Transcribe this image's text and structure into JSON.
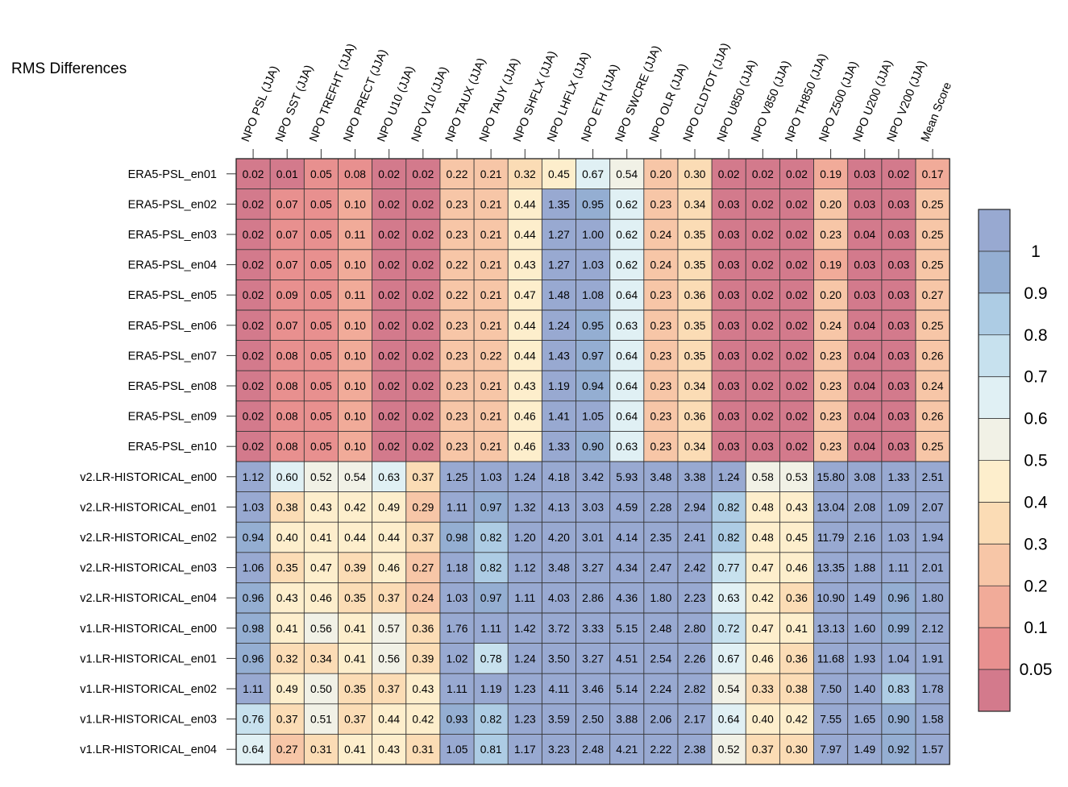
{
  "chart_data": {
    "type": "heatmap",
    "title": "RMS Differences",
    "columns": [
      "NPO PSL (JJA)",
      "NPO SST (JJA)",
      "NPO TREFHT (JJA)",
      "NPO PRECT (JJA)",
      "NPO U10 (JJA)",
      "NPO V10 (JJA)",
      "NPO TAUX (JJA)",
      "NPO TAUY (JJA)",
      "NPO SHFLX (JJA)",
      "NPO LHFLX (JJA)",
      "NPO ETH (JJA)",
      "NPO SWCRE (JJA)",
      "NPO OLR (JJA)",
      "NPO CLDTOT (JJA)",
      "NPO U850 (JJA)",
      "NPO V850 (JJA)",
      "NPO TH850 (JJA)",
      "NPO Z500 (JJA)",
      "NPO U200 (JJA)",
      "NPO V200 (JJA)",
      "Mean Score"
    ],
    "rows": [
      "ERA5-PSL_en01",
      "ERA5-PSL_en02",
      "ERA5-PSL_en03",
      "ERA5-PSL_en04",
      "ERA5-PSL_en05",
      "ERA5-PSL_en06",
      "ERA5-PSL_en07",
      "ERA5-PSL_en08",
      "ERA5-PSL_en09",
      "ERA5-PSL_en10",
      "v2.LR-HISTORICAL_en00",
      "v2.LR-HISTORICAL_en01",
      "v2.LR-HISTORICAL_en02",
      "v2.LR-HISTORICAL_en03",
      "v2.LR-HISTORICAL_en04",
      "v1.LR-HISTORICAL_en00",
      "v1.LR-HISTORICAL_en01",
      "v1.LR-HISTORICAL_en02",
      "v1.LR-HISTORICAL_en03",
      "v1.LR-HISTORICAL_en04"
    ],
    "values": [
      [
        "0.02",
        "0.01",
        "0.05",
        "0.08",
        "0.02",
        "0.02",
        "0.22",
        "0.21",
        "0.32",
        "0.45",
        "0.67",
        "0.54",
        "0.20",
        "0.30",
        "0.02",
        "0.02",
        "0.02",
        "0.19",
        "0.03",
        "0.02",
        "0.17"
      ],
      [
        "0.02",
        "0.07",
        "0.05",
        "0.10",
        "0.02",
        "0.02",
        "0.23",
        "0.21",
        "0.44",
        "1.35",
        "0.95",
        "0.62",
        "0.23",
        "0.34",
        "0.03",
        "0.02",
        "0.02",
        "0.20",
        "0.03",
        "0.03",
        "0.25"
      ],
      [
        "0.02",
        "0.07",
        "0.05",
        "0.11",
        "0.02",
        "0.02",
        "0.23",
        "0.21",
        "0.44",
        "1.27",
        "1.00",
        "0.62",
        "0.24",
        "0.35",
        "0.03",
        "0.02",
        "0.02",
        "0.23",
        "0.04",
        "0.03",
        "0.25"
      ],
      [
        "0.02",
        "0.07",
        "0.05",
        "0.10",
        "0.02",
        "0.02",
        "0.22",
        "0.21",
        "0.43",
        "1.27",
        "1.03",
        "0.62",
        "0.24",
        "0.35",
        "0.03",
        "0.02",
        "0.02",
        "0.19",
        "0.03",
        "0.03",
        "0.25"
      ],
      [
        "0.02",
        "0.09",
        "0.05",
        "0.11",
        "0.02",
        "0.02",
        "0.22",
        "0.21",
        "0.47",
        "1.48",
        "1.08",
        "0.64",
        "0.23",
        "0.36",
        "0.03",
        "0.02",
        "0.02",
        "0.20",
        "0.03",
        "0.03",
        "0.27"
      ],
      [
        "0.02",
        "0.07",
        "0.05",
        "0.10",
        "0.02",
        "0.02",
        "0.23",
        "0.21",
        "0.44",
        "1.24",
        "0.95",
        "0.63",
        "0.23",
        "0.35",
        "0.03",
        "0.02",
        "0.02",
        "0.24",
        "0.04",
        "0.03",
        "0.25"
      ],
      [
        "0.02",
        "0.08",
        "0.05",
        "0.10",
        "0.02",
        "0.02",
        "0.23",
        "0.22",
        "0.44",
        "1.43",
        "0.97",
        "0.64",
        "0.23",
        "0.35",
        "0.03",
        "0.02",
        "0.02",
        "0.23",
        "0.04",
        "0.03",
        "0.26"
      ],
      [
        "0.02",
        "0.08",
        "0.05",
        "0.10",
        "0.02",
        "0.02",
        "0.23",
        "0.21",
        "0.43",
        "1.19",
        "0.94",
        "0.64",
        "0.23",
        "0.34",
        "0.03",
        "0.02",
        "0.02",
        "0.23",
        "0.04",
        "0.03",
        "0.24"
      ],
      [
        "0.02",
        "0.08",
        "0.05",
        "0.10",
        "0.02",
        "0.02",
        "0.23",
        "0.21",
        "0.46",
        "1.41",
        "1.05",
        "0.64",
        "0.23",
        "0.36",
        "0.03",
        "0.02",
        "0.02",
        "0.23",
        "0.04",
        "0.03",
        "0.26"
      ],
      [
        "0.02",
        "0.08",
        "0.05",
        "0.10",
        "0.02",
        "0.02",
        "0.23",
        "0.21",
        "0.46",
        "1.33",
        "0.90",
        "0.63",
        "0.23",
        "0.34",
        "0.03",
        "0.03",
        "0.02",
        "0.23",
        "0.04",
        "0.03",
        "0.25"
      ],
      [
        "1.12",
        "0.60",
        "0.52",
        "0.54",
        "0.63",
        "0.37",
        "1.25",
        "1.03",
        "1.24",
        "4.18",
        "3.42",
        "5.93",
        "3.48",
        "3.38",
        "1.24",
        "0.58",
        "0.53",
        "15.80",
        "3.08",
        "1.33",
        "2.51"
      ],
      [
        "1.03",
        "0.38",
        "0.43",
        "0.42",
        "0.49",
        "0.29",
        "1.11",
        "0.97",
        "1.32",
        "4.13",
        "3.03",
        "4.59",
        "2.28",
        "2.94",
        "0.82",
        "0.48",
        "0.43",
        "13.04",
        "2.08",
        "1.09",
        "2.07"
      ],
      [
        "0.94",
        "0.40",
        "0.41",
        "0.44",
        "0.44",
        "0.37",
        "0.98",
        "0.82",
        "1.20",
        "4.20",
        "3.01",
        "4.14",
        "2.35",
        "2.41",
        "0.82",
        "0.48",
        "0.45",
        "11.79",
        "2.16",
        "1.03",
        "1.94"
      ],
      [
        "1.06",
        "0.35",
        "0.47",
        "0.39",
        "0.46",
        "0.27",
        "1.18",
        "0.82",
        "1.12",
        "3.48",
        "3.27",
        "4.34",
        "2.47",
        "2.42",
        "0.77",
        "0.47",
        "0.46",
        "13.35",
        "1.88",
        "1.11",
        "2.01"
      ],
      [
        "0.96",
        "0.43",
        "0.46",
        "0.35",
        "0.37",
        "0.24",
        "1.03",
        "0.97",
        "1.11",
        "4.03",
        "2.86",
        "4.36",
        "1.80",
        "2.23",
        "0.63",
        "0.42",
        "0.36",
        "10.90",
        "1.49",
        "0.96",
        "1.80"
      ],
      [
        "0.98",
        "0.41",
        "0.56",
        "0.41",
        "0.57",
        "0.36",
        "1.76",
        "1.11",
        "1.42",
        "3.72",
        "3.33",
        "5.15",
        "2.48",
        "2.80",
        "0.72",
        "0.47",
        "0.41",
        "13.13",
        "1.60",
        "0.99",
        "2.12"
      ],
      [
        "0.96",
        "0.32",
        "0.34",
        "0.41",
        "0.56",
        "0.39",
        "1.02",
        "0.78",
        "1.24",
        "3.50",
        "3.27",
        "4.51",
        "2.54",
        "2.26",
        "0.67",
        "0.46",
        "0.36",
        "11.68",
        "1.93",
        "1.04",
        "1.91"
      ],
      [
        "1.11",
        "0.49",
        "0.50",
        "0.35",
        "0.37",
        "0.43",
        "1.11",
        "1.19",
        "1.23",
        "4.11",
        "3.46",
        "5.14",
        "2.24",
        "2.82",
        "0.54",
        "0.33",
        "0.38",
        "7.50",
        "1.40",
        "0.83",
        "1.78"
      ],
      [
        "0.76",
        "0.37",
        "0.51",
        "0.37",
        "0.44",
        "0.42",
        "0.93",
        "0.82",
        "1.23",
        "3.59",
        "2.50",
        "3.88",
        "2.06",
        "2.17",
        "0.64",
        "0.40",
        "0.42",
        "7.55",
        "1.65",
        "0.90",
        "1.58"
      ],
      [
        "0.64",
        "0.27",
        "0.31",
        "0.41",
        "0.43",
        "0.31",
        "1.05",
        "0.81",
        "1.17",
        "3.23",
        "2.48",
        "4.21",
        "2.22",
        "2.38",
        "0.52",
        "0.37",
        "0.30",
        "7.97",
        "1.49",
        "0.92",
        "1.57"
      ]
    ],
    "colorbar": {
      "levels": [
        0.05,
        0.1,
        0.2,
        0.3,
        0.4,
        0.5,
        0.6,
        0.7,
        0.8,
        0.9,
        1
      ],
      "tick_labels": [
        "0.05",
        "0.1",
        "0.2",
        "0.3",
        "0.4",
        "0.5",
        "0.6",
        "0.7",
        "0.8",
        "0.9",
        "1"
      ],
      "colors": [
        "#d37a8c",
        "#e8908f",
        "#f1ab99",
        "#f7c6a7",
        "#fbdcb5",
        "#fdeecc",
        "#f1f1e6",
        "#e0f0f4",
        "#c7e1ee",
        "#adcce4",
        "#94aed2",
        "#98a9d1"
      ]
    }
  }
}
